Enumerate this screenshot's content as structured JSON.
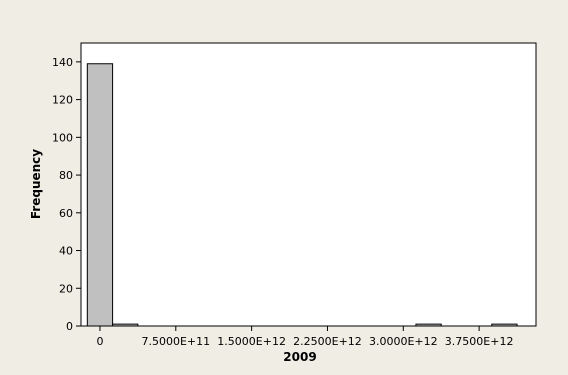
{
  "chart_data": {
    "type": "bar",
    "subtype": "histogram",
    "title": "",
    "xlabel": "2009",
    "ylabel": "Frequency",
    "xlim": [
      -187500000000,
      4312500000000
    ],
    "ylim": [
      0,
      150
    ],
    "x_ticks": [
      {
        "value": 0,
        "label": "0"
      },
      {
        "value": 750000000000,
        "label": "7.5000E+11"
      },
      {
        "value": 1500000000000,
        "label": "1.5000E+12"
      },
      {
        "value": 2250000000000,
        "label": "2.2500E+12"
      },
      {
        "value": 3000000000000,
        "label": "3.0000E+12"
      },
      {
        "value": 3750000000000,
        "label": "3.7500E+12"
      }
    ],
    "y_ticks": [
      0,
      20,
      40,
      60,
      80,
      100,
      120,
      140
    ],
    "bin_width": 250000000000,
    "bins": [
      {
        "center": 0,
        "count": 139
      },
      {
        "center": 250000000000,
        "count": 1
      },
      {
        "center": 500000000000,
        "count": 0
      },
      {
        "center": 750000000000,
        "count": 0
      },
      {
        "center": 1000000000000,
        "count": 0
      },
      {
        "center": 1250000000000,
        "count": 0
      },
      {
        "center": 1500000000000,
        "count": 0
      },
      {
        "center": 1750000000000,
        "count": 0
      },
      {
        "center": 2000000000000,
        "count": 0
      },
      {
        "center": 2250000000000,
        "count": 0
      },
      {
        "center": 2500000000000,
        "count": 0
      },
      {
        "center": 2750000000000,
        "count": 0
      },
      {
        "center": 3000000000000,
        "count": 0
      },
      {
        "center": 3250000000000,
        "count": 1
      },
      {
        "center": 3500000000000,
        "count": 0
      },
      {
        "center": 3750000000000,
        "count": 0
      },
      {
        "center": 4000000000000,
        "count": 1
      }
    ],
    "grid": false,
    "colors": {
      "bar_fill": "#c0c0c0",
      "bar_stroke": "#000000",
      "plot_background": "#ffffff",
      "frame_background": "#f0ede4"
    }
  }
}
